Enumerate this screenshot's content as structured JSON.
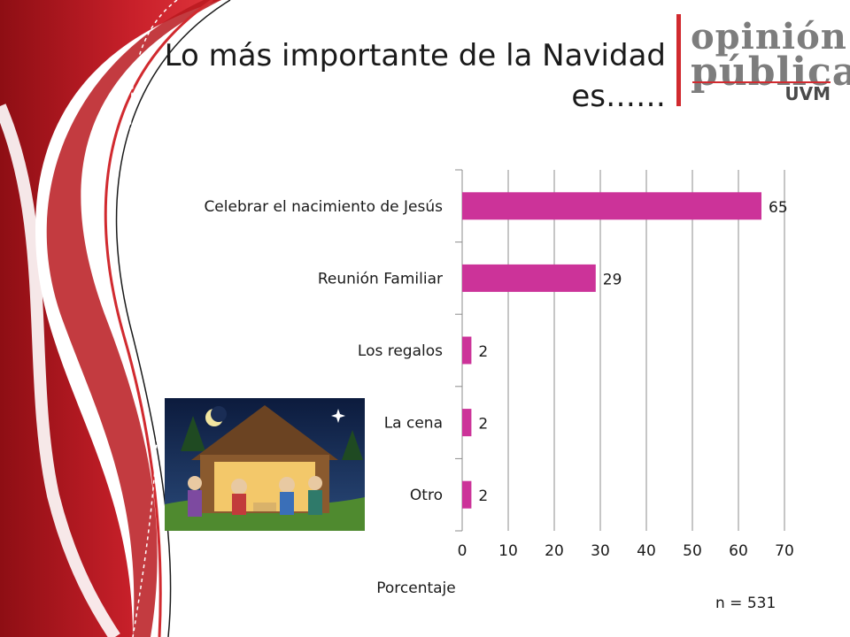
{
  "slide": {
    "title_line1": "Lo más importante de la Navidad",
    "title_line2": "es……",
    "footnote": "n = 531"
  },
  "logo": {
    "line1": "opinión",
    "line2": "pública",
    "line3": "UVM"
  },
  "colors": {
    "bar": "#cc3399",
    "accent_red": "#c8202a",
    "grid": "#8c8c8c"
  },
  "chart_data": {
    "type": "bar",
    "orientation": "horizontal",
    "categories": [
      "Celebrar el nacimiento de Jesús",
      "Reunión Familiar",
      "Los regalos",
      "La cena",
      "Otro"
    ],
    "values": [
      65,
      29,
      2,
      2,
      2
    ],
    "data_labels": [
      "65",
      "29",
      "2",
      "2",
      "2"
    ],
    "xlabel": "Porcentaje",
    "xlim": [
      0,
      70
    ],
    "xticks": [
      0,
      10,
      20,
      30,
      40,
      50,
      60,
      70
    ],
    "grid": true
  }
}
